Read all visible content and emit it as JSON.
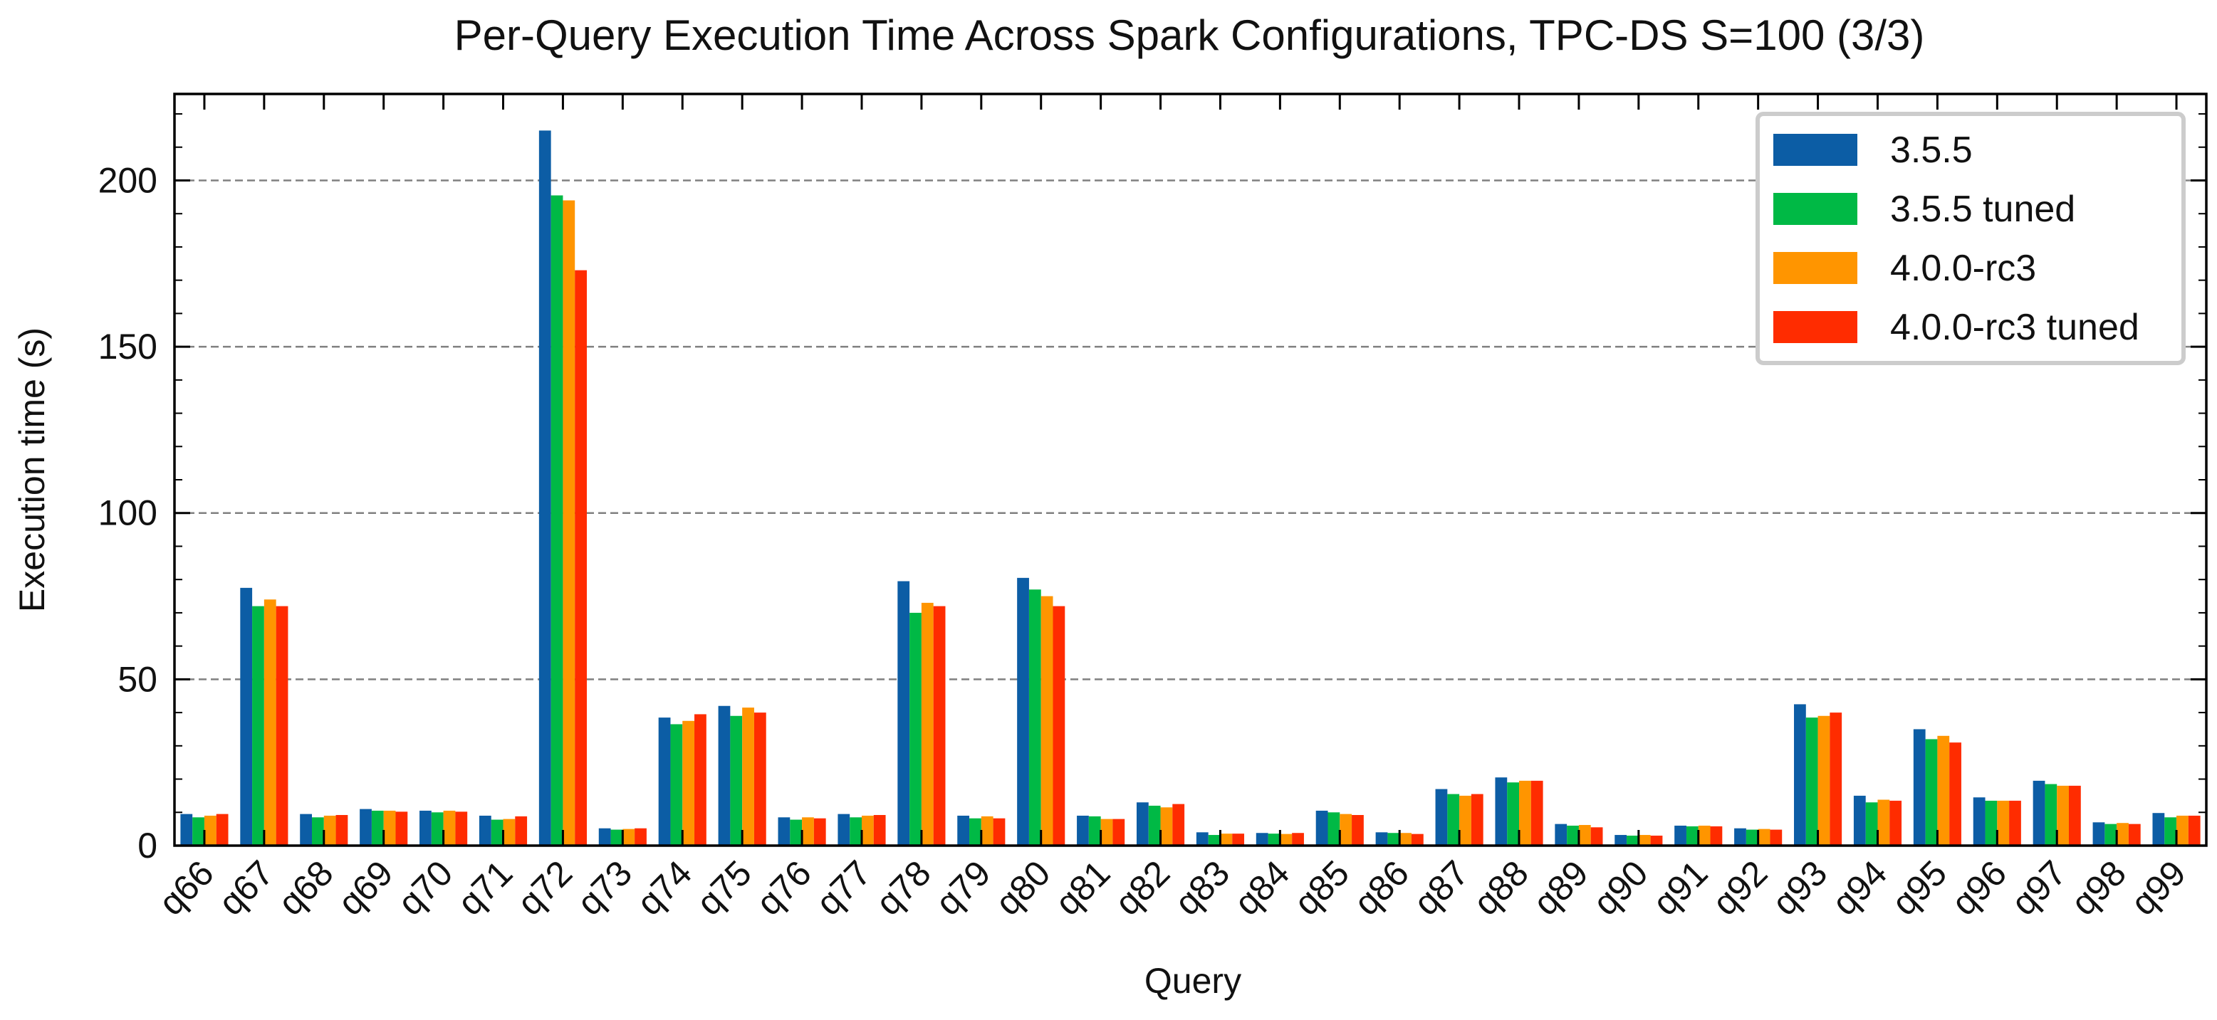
{
  "chart_data": {
    "type": "bar",
    "title": "Per-Query Execution Time Across Spark Configurations, TPC-DS S=100 (3/3)",
    "xlabel": "Query",
    "ylabel": "Execution time (s)",
    "ylim": [
      0,
      226
    ],
    "yticks": [
      0,
      50,
      100,
      150,
      200
    ],
    "grid": "horizontal dashed at major y ticks",
    "legend_position": "top-right",
    "categories": [
      "q66",
      "q67",
      "q68",
      "q69",
      "q70",
      "q71",
      "q72",
      "q73",
      "q74",
      "q75",
      "q76",
      "q77",
      "q78",
      "q79",
      "q80",
      "q81",
      "q82",
      "q83",
      "q84",
      "q85",
      "q86",
      "q87",
      "q88",
      "q89",
      "q90",
      "q91",
      "q92",
      "q93",
      "q94",
      "q95",
      "q96",
      "q97",
      "q98",
      "q99"
    ],
    "series": [
      {
        "name": "3.5.5",
        "color": "#0C5DA5",
        "values": [
          9.5,
          77.5,
          9.5,
          11,
          10.5,
          9,
          215,
          5.2,
          38.5,
          42,
          8.5,
          9.5,
          79.5,
          9,
          80.5,
          9,
          13,
          4,
          3.8,
          10.5,
          4,
          17,
          20.5,
          6.5,
          3.2,
          6,
          5.2,
          42.5,
          15,
          35,
          14.5,
          19.5,
          7,
          9.8
        ]
      },
      {
        "name": "3.5.5 tuned",
        "color": "#00B945",
        "values": [
          8.5,
          72,
          8.5,
          10.5,
          10,
          7.8,
          195.5,
          4.8,
          36.5,
          39,
          7.8,
          8.5,
          70,
          8.2,
          77,
          8.8,
          12,
          3.2,
          3.6,
          10,
          3.8,
          15.5,
          19,
          6,
          3,
          5.8,
          4.8,
          38.5,
          13,
          32,
          13.5,
          18.5,
          6.5,
          8.5
        ]
      },
      {
        "name": "4.0.0-rc3",
        "color": "#FF9500",
        "values": [
          9,
          74,
          9,
          10.5,
          10.5,
          8,
          194,
          5,
          37.5,
          41.5,
          8.5,
          9,
          73,
          8.8,
          75,
          8,
          11.5,
          3.6,
          3.5,
          9.5,
          3.8,
          15,
          19.5,
          6.2,
          3.2,
          6,
          5,
          39,
          13.8,
          33,
          13.5,
          18,
          6.8,
          9
        ]
      },
      {
        "name": "4.0.0-rc3 tuned",
        "color": "#FF2C00",
        "values": [
          9.5,
          72,
          9.2,
          10.2,
          10.2,
          8.8,
          173,
          5.2,
          39.5,
          40,
          8.2,
          9.2,
          72,
          8.2,
          72,
          8,
          12.5,
          3.6,
          3.8,
          9.2,
          3.5,
          15.5,
          19.5,
          5.5,
          3,
          5.8,
          4.8,
          40,
          13.5,
          31,
          13.5,
          18,
          6.5,
          9
        ]
      }
    ]
  }
}
